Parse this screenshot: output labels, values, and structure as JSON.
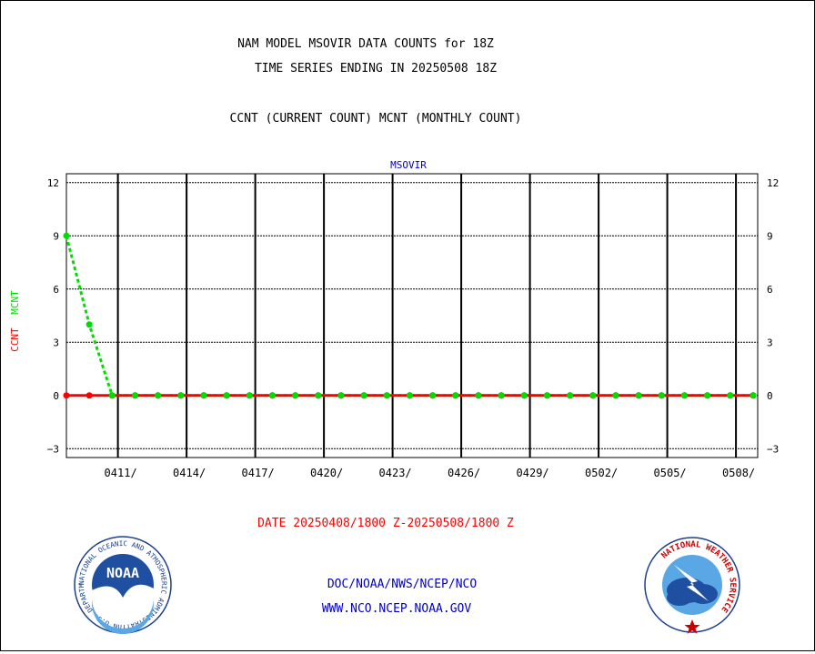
{
  "header": {
    "title_line1": "NAM MODEL MSOVIR DATA COUNTS for 18Z",
    "title_line2": "TIME SERIES ENDING IN 20250508 18Z",
    "subtitle": "CCNT (CURRENT COUNT) MCNT (MONTHLY COUNT)"
  },
  "footer": {
    "date_range": "DATE 20250408/1800 Z-20250508/1800 Z",
    "org_path": "DOC/NOAA/NWS/NCEP/NCO",
    "website": "WWW.NCO.NCEP.NOAA.GOV",
    "noaa_logo_text": "NOAA",
    "noaa_seal_text": "NATIONAL OCEANIC AND ATMOSPHERIC ADMINISTRATION U.S. DEPARTMENT OF COMMERCE",
    "nws_seal_text": "NATIONAL WEATHER SERVICE"
  },
  "colors": {
    "ccnt": "#ff0000",
    "mcnt": "#00dd00",
    "title": "#000000",
    "chart_label": "#0000cc",
    "footer_date": "#ff0000",
    "footer_links": "#0000cc"
  },
  "chart_data": {
    "type": "line",
    "title": "MSOVIR",
    "ylabel_parts": [
      "CCNT",
      "MCNT"
    ],
    "ylim": [
      -3.5,
      12.5
    ],
    "yticks": [
      -3,
      0,
      3,
      6,
      9,
      12
    ],
    "grid": true,
    "x_tick_labels": [
      "0411/",
      "0414/",
      "0417/",
      "0420/",
      "0423/",
      "0426/",
      "0429/",
      "0502/",
      "0505/",
      "0508/"
    ],
    "x_tick_day_index": [
      2.25,
      5.25,
      8.25,
      11.25,
      14.25,
      17.25,
      20.25,
      23.25,
      26.25,
      29.25
    ],
    "x_range_days": [
      0,
      30.2
    ],
    "series": [
      {
        "name": "CCNT",
        "style": "solid",
        "x": [
          0,
          1,
          2,
          3,
          4,
          5,
          6,
          7,
          8,
          9,
          10,
          11,
          12,
          13,
          14,
          15,
          16,
          17,
          18,
          19,
          20,
          21,
          22,
          23,
          24,
          25,
          26,
          27,
          28,
          29,
          30
        ],
        "values": [
          0,
          0,
          0,
          0,
          0,
          0,
          0,
          0,
          0,
          0,
          0,
          0,
          0,
          0,
          0,
          0,
          0,
          0,
          0,
          0,
          0,
          0,
          0,
          0,
          0,
          0,
          0,
          0,
          0,
          0,
          0
        ]
      },
      {
        "name": "MCNT",
        "style": "dotted",
        "x": [
          0,
          1,
          2,
          3,
          4,
          5,
          6,
          7,
          8,
          9,
          10,
          11,
          12,
          13,
          14,
          15,
          16,
          17,
          18,
          19,
          20,
          21,
          22,
          23,
          24,
          25,
          26,
          27,
          28,
          29,
          30
        ],
        "values": [
          9,
          4,
          0,
          0,
          0,
          0,
          0,
          0,
          0,
          0,
          0,
          0,
          0,
          0,
          0,
          0,
          0,
          0,
          0,
          0,
          0,
          0,
          0,
          0,
          0,
          0,
          0,
          0,
          0,
          0,
          0
        ]
      }
    ]
  }
}
